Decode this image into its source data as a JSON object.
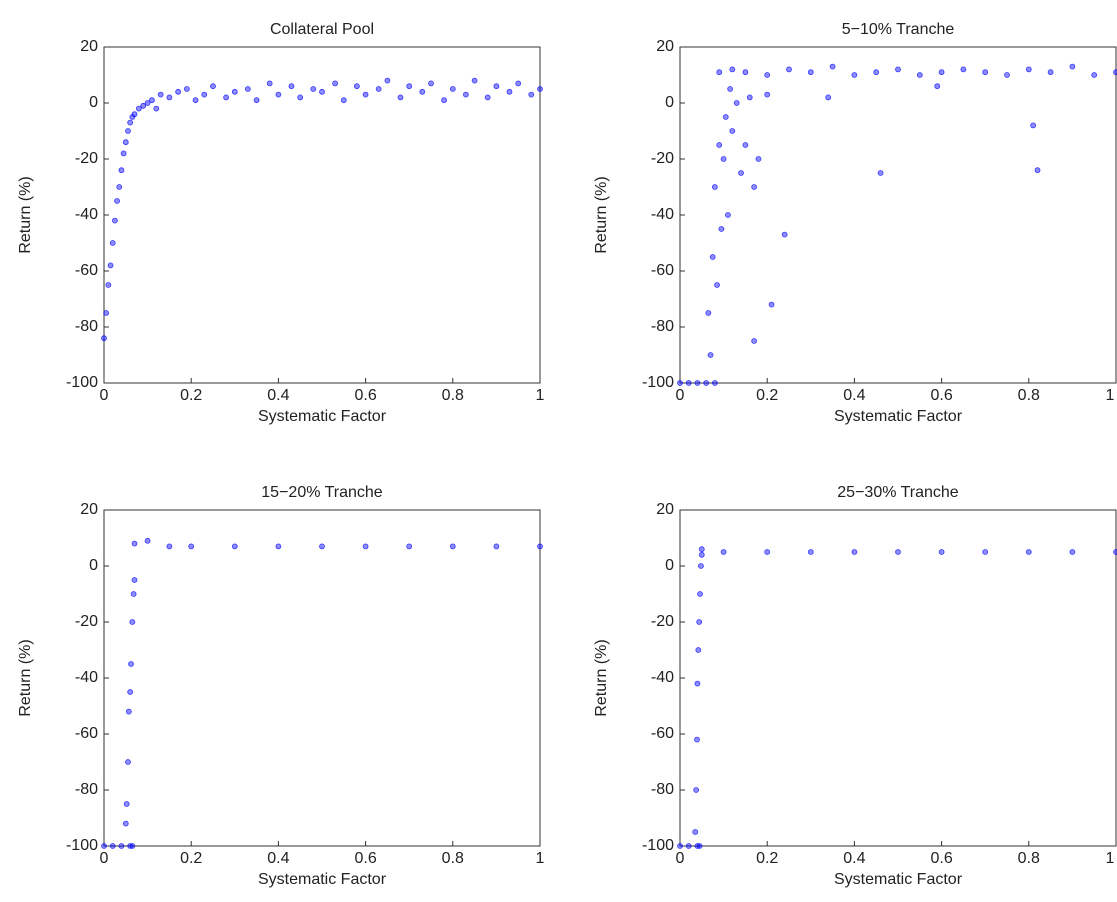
{
  "chart_data": [
    {
      "type": "scatter",
      "title": "Collateral Pool",
      "xlabel": "Systematic Factor",
      "ylabel": "Return (%)",
      "color": "#0000ff",
      "xlim": [
        0,
        1
      ],
      "ylim": [
        -100,
        20
      ],
      "xticks": [
        0,
        0.2,
        0.4,
        0.6,
        0.8,
        1
      ],
      "yticks": [
        -100,
        -80,
        -60,
        -40,
        -20,
        0,
        20
      ],
      "x": [
        0,
        0.005,
        0.01,
        0.015,
        0.02,
        0.025,
        0.03,
        0.035,
        0.04,
        0.045,
        0.05,
        0.055,
        0.06,
        0.065,
        0.07,
        0.08,
        0.09,
        0.1,
        0.11,
        0.12,
        0.13,
        0.15,
        0.17,
        0.19,
        0.21,
        0.23,
        0.25,
        0.28,
        0.3,
        0.33,
        0.35,
        0.38,
        0.4,
        0.43,
        0.45,
        0.48,
        0.5,
        0.53,
        0.55,
        0.58,
        0.6,
        0.63,
        0.65,
        0.68,
        0.7,
        0.73,
        0.75,
        0.78,
        0.8,
        0.83,
        0.85,
        0.88,
        0.9,
        0.93,
        0.95,
        0.98,
        1
      ],
      "values": [
        -84,
        -75,
        -65,
        -58,
        -50,
        -42,
        -35,
        -30,
        -24,
        -18,
        -14,
        -10,
        -7,
        -5,
        -4,
        -2,
        -1,
        0,
        1,
        -2,
        3,
        2,
        4,
        5,
        1,
        3,
        6,
        2,
        4,
        5,
        1,
        7,
        3,
        6,
        2,
        5,
        4,
        7,
        1,
        6,
        3,
        5,
        8,
        2,
        6,
        4,
        7,
        1,
        5,
        3,
        8,
        2,
        6,
        4,
        7,
        3,
        5
      ]
    },
    {
      "type": "scatter",
      "title": "5−10% Tranche",
      "xlabel": "Systematic Factor",
      "ylabel": "Return (%)",
      "color": "#0000ff",
      "xlim": [
        0,
        1
      ],
      "ylim": [
        -100,
        20
      ],
      "xticks": [
        0,
        0.2,
        0.4,
        0.6,
        0.8,
        1
      ],
      "yticks": [
        -100,
        -80,
        -60,
        -40,
        -20,
        0,
        20
      ],
      "x": [
        0,
        0.02,
        0.04,
        0.06,
        0.08,
        0.065,
        0.07,
        0.075,
        0.08,
        0.085,
        0.09,
        0.095,
        0.1,
        0.105,
        0.11,
        0.115,
        0.12,
        0.13,
        0.14,
        0.15,
        0.16,
        0.17,
        0.18,
        0.2,
        0.24,
        0.21,
        0.17,
        0.34,
        0.46,
        0.59,
        0.81,
        0.82,
        0.09,
        0.12,
        0.15,
        0.2,
        0.25,
        0.3,
        0.35,
        0.4,
        0.45,
        0.5,
        0.55,
        0.6,
        0.65,
        0.7,
        0.75,
        0.8,
        0.85,
        0.9,
        0.95,
        1
      ],
      "values": [
        -100,
        -100,
        -100,
        -100,
        -100,
        -75,
        -90,
        -55,
        -30,
        -65,
        -15,
        -45,
        -20,
        -5,
        -40,
        5,
        -10,
        0,
        -25,
        -15,
        2,
        -30,
        -20,
        3,
        -47,
        -72,
        -85,
        2,
        -25,
        6,
        -8,
        -24,
        11,
        12,
        11,
        10,
        12,
        11,
        13,
        10,
        11,
        12,
        10,
        11,
        12,
        11,
        10,
        12,
        11,
        13,
        10,
        11
      ]
    },
    {
      "type": "scatter",
      "title": "15−20% Tranche",
      "xlabel": "Systematic Factor",
      "ylabel": "Return (%)",
      "color": "#0000ff",
      "xlim": [
        0,
        1
      ],
      "ylim": [
        -100,
        20
      ],
      "xticks": [
        0,
        0.2,
        0.4,
        0.6,
        0.8,
        1
      ],
      "yticks": [
        -100,
        -80,
        -60,
        -40,
        -20,
        0,
        20
      ],
      "x": [
        0,
        0.02,
        0.04,
        0.06,
        0.065,
        0.05,
        0.052,
        0.055,
        0.057,
        0.06,
        0.062,
        0.065,
        0.068,
        0.07,
        0.07,
        0.1,
        0.15,
        0.2,
        0.3,
        0.4,
        0.5,
        0.6,
        0.7,
        0.8,
        0.9,
        1
      ],
      "values": [
        -100,
        -100,
        -100,
        -100,
        -100,
        -92,
        -85,
        -70,
        -52,
        -45,
        -35,
        -20,
        -10,
        -5,
        8,
        9,
        7,
        7,
        7,
        7,
        7,
        7,
        7,
        7,
        7,
        7
      ]
    },
    {
      "type": "scatter",
      "title": "25−30% Tranche",
      "xlabel": "Systematic Factor",
      "ylabel": "Return (%)",
      "color": "#0000ff",
      "xlim": [
        0,
        1
      ],
      "ylim": [
        -100,
        20
      ],
      "xticks": [
        0,
        0.2,
        0.4,
        0.6,
        0.8,
        1
      ],
      "yticks": [
        -100,
        -80,
        -60,
        -40,
        -20,
        0,
        20
      ],
      "x": [
        0,
        0.02,
        0.04,
        0.045,
        0.035,
        0.037,
        0.039,
        0.04,
        0.042,
        0.044,
        0.046,
        0.048,
        0.05,
        0.05,
        0.1,
        0.2,
        0.3,
        0.4,
        0.5,
        0.6,
        0.7,
        0.8,
        0.9,
        1
      ],
      "values": [
        -100,
        -100,
        -100,
        -100,
        -95,
        -80,
        -62,
        -42,
        -30,
        -20,
        -10,
        0,
        4,
        6,
        5,
        5,
        5,
        5,
        5,
        5,
        5,
        5,
        5,
        5
      ]
    }
  ]
}
